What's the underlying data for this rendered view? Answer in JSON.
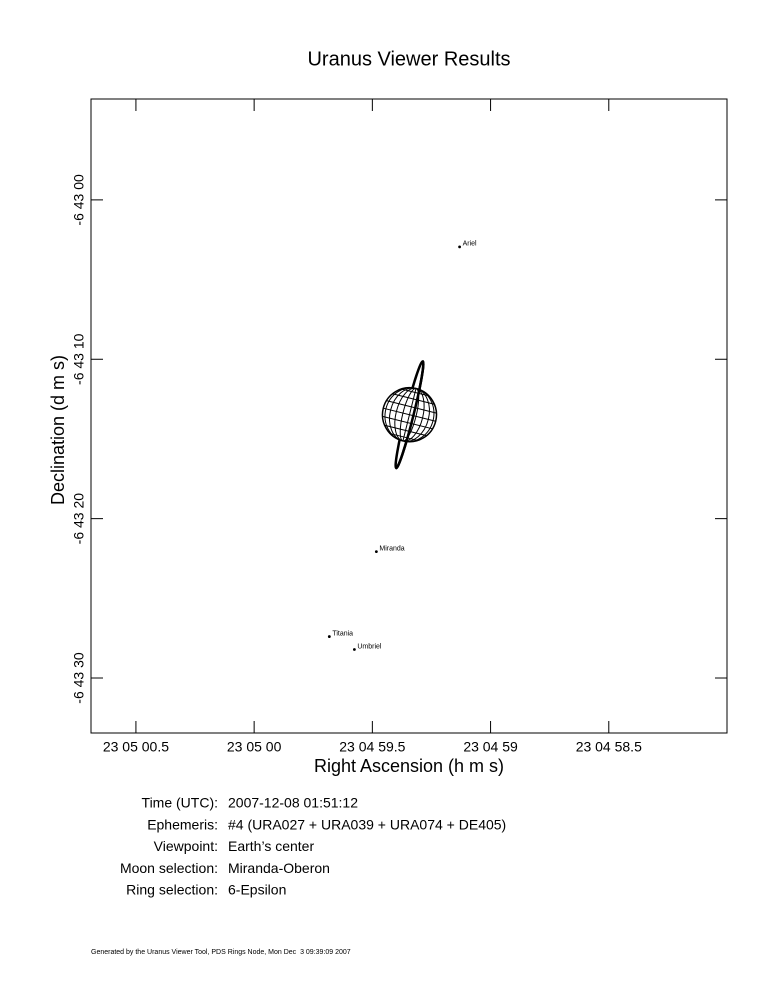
{
  "chart_data": {
    "type": "scatter",
    "title": "Uranus Viewer Results",
    "x_label": "Right Ascension (h m s)",
    "y_label": "Declination (d m s)",
    "xlim": [
      60.69,
      58.0
    ],
    "ylim": [
      -6.33,
      33.45
    ],
    "xticks": [
      {
        "value": 60.5,
        "label": "23 05 00.5"
      },
      {
        "value": 60,
        "label": "23 05 00"
      },
      {
        "value": 59.5,
        "label": "23 04 59.5"
      },
      {
        "value": 59,
        "label": "23 04 59"
      },
      {
        "value": 58.5,
        "label": "23 04 58.5"
      }
    ],
    "yticks": [
      {
        "value": 0,
        "label": "-6 43 00"
      },
      {
        "value": 10,
        "label": "-6 43 10"
      },
      {
        "value": 20,
        "label": "-6 43 20"
      },
      {
        "value": 30,
        "label": "-6 43 30"
      }
    ],
    "labels": [
      "Ariel",
      "Miranda",
      "Titania",
      "Umbriel"
    ],
    "x": [
      59.131,
      59.483,
      59.682,
      59.576
    ],
    "y": [
      2.95,
      22.07,
      27.4,
      28.21
    ],
    "planet": {
      "x": 59.343,
      "y": 13.48
    }
  },
  "details": [
    {
      "label": "Time (UTC):",
      "value": "2007-12-08 01:51:12"
    },
    {
      "label": "Ephemeris:",
      "value": "#4 (URA027 + URA039 + URA074 + DE405)"
    },
    {
      "label": "Viewpoint:",
      "value": "Earth’s center"
    },
    {
      "label": "Moon selection:",
      "value": "Miranda-Oberon"
    },
    {
      "label": "Ring selection:",
      "value": "6-Epsilon"
    }
  ],
  "footer": "Generated by the Uranus Viewer Tool, PDS Rings Node, Mon Dec  3 09:39:09 2007"
}
